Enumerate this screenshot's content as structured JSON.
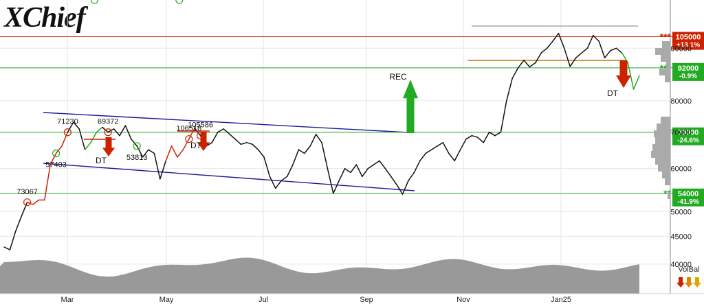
{
  "logo": {
    "text": "XChief"
  },
  "chart_data": {
    "type": "line",
    "x_labels": [
      "Mar",
      "May",
      "Jul",
      "Sep",
      "Nov",
      "Jan25"
    ],
    "y_ticks": [
      40000,
      45000,
      50000,
      60000,
      70000,
      80000,
      100000
    ],
    "y_scale": "log",
    "ylim": [
      38500,
      122000
    ],
    "grid": true,
    "price_series": {
      "x": [
        0,
        3,
        6,
        9,
        12,
        15,
        18,
        21,
        24,
        27,
        30,
        33,
        36,
        39,
        42,
        45,
        48,
        51,
        54,
        57,
        60,
        63,
        66,
        69,
        72,
        75,
        78,
        81,
        84,
        87,
        90,
        93,
        96,
        99,
        102,
        105,
        108,
        111,
        114,
        117,
        120,
        123,
        126,
        129,
        132,
        135,
        138,
        141,
        144,
        147,
        150,
        153,
        156,
        159,
        162,
        165,
        168,
        171,
        174,
        177,
        180,
        183,
        186,
        189,
        192,
        195,
        198,
        201,
        204,
        207,
        210,
        213,
        216,
        219,
        222,
        225,
        228,
        231,
        234,
        237,
        240,
        243,
        246,
        249,
        252,
        255,
        258,
        261,
        264,
        267,
        270,
        273,
        276,
        279,
        282,
        285,
        288,
        291,
        294,
        297,
        300,
        303,
        306,
        309,
        312,
        315,
        318,
        321,
        324,
        327,
        330
      ],
      "y": [
        43000,
        42500,
        46000,
        49000,
        52000,
        51500,
        52500,
        52500,
        61000,
        64000,
        66000,
        70000,
        73067,
        71000,
        65000,
        67000,
        70000,
        71500,
        70000,
        71000,
        69000,
        72000,
        68000,
        66000,
        63000,
        65000,
        64000,
        57403,
        62000,
        66000,
        63000,
        65000,
        68000,
        71230,
        69000,
        66000,
        67000,
        70000,
        71000,
        69500,
        68000,
        66500,
        67000,
        66500,
        65000,
        63000,
        58000,
        55184,
        57000,
        58000,
        61000,
        65000,
        64000,
        66000,
        69372,
        67000,
        60000,
        54000,
        57000,
        60000,
        59000,
        61000,
        58000,
        60000,
        61000,
        62000,
        60000,
        58000,
        56000,
        53813,
        57000,
        59000,
        62000,
        64000,
        65000,
        66000,
        67000,
        64000,
        62000,
        65000,
        68000,
        69000,
        68500,
        67000,
        70000,
        69000,
        70000,
        80000,
        88000,
        92000,
        95000,
        92364,
        94000,
        98000,
        100000,
        103000,
        106518,
        100000,
        92500,
        96000,
        98000,
        100000,
        105586,
        103000,
        96000,
        99000,
        100000,
        98000,
        94000,
        84000,
        89000
      ],
      "highs": [
        [
          12,
          73067
        ],
        [
          33,
          71230
        ],
        [
          54,
          69372
        ],
        [
          96,
          106518
        ],
        [
          102,
          105586
        ]
      ],
      "lows": [
        [
          27,
          57403
        ],
        [
          47,
          55184
        ],
        [
          69,
          53813
        ],
        [
          91,
          92364
        ]
      ]
    },
    "levels": [
      {
        "value": 105000,
        "label": "105000",
        "pct": "+13.1%",
        "color": "#cc2200",
        "stars": "***"
      },
      {
        "value": 92000,
        "label": "92000",
        "pct": "-0.9%",
        "color": "#22aa22",
        "stars": "***"
      },
      {
        "value": 70000,
        "label": "70000",
        "pct": "-24.6%",
        "color": "#22aa22",
        "stars": "***"
      },
      {
        "value": 54000,
        "label": "54000",
        "pct": "-41.9%",
        "color": "#22aa22",
        "stars": "**"
      }
    ],
    "annotations": [
      {
        "text": "DT",
        "kind": "down"
      },
      {
        "text": "DT",
        "kind": "down"
      },
      {
        "text": "DT",
        "kind": "down"
      },
      {
        "text": "REC",
        "kind": "up"
      }
    ],
    "volume_label": "VolBal",
    "colors": {
      "red": "#cc2200",
      "green": "#22aa22",
      "blue": "#1a1a9a",
      "volume": "#999999"
    }
  }
}
